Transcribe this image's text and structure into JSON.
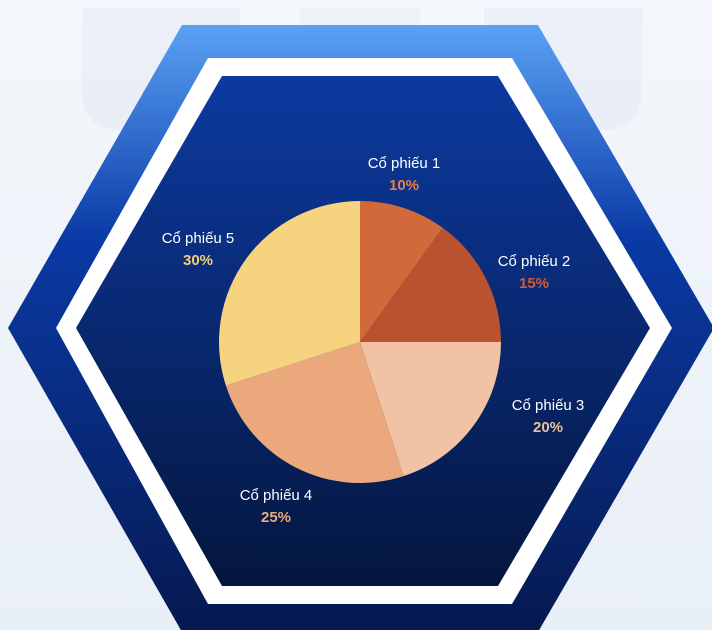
{
  "chart_data": {
    "type": "pie",
    "start_angle_deg": 0,
    "direction": "clockwise",
    "slices": [
      {
        "label": "Cổ phiếu 1",
        "value_label": "10%",
        "value": 10,
        "color": "#d2693a",
        "label_color": "#ffffff",
        "value_color": "#e57d45"
      },
      {
        "label": "Cổ phiếu 2",
        "value_label": "15%",
        "value": 15,
        "color": "#b9522f",
        "label_color": "#ffffff",
        "value_color": "#d35a33"
      },
      {
        "label": "Cổ phiếu 3",
        "value_label": "20%",
        "value": 20,
        "color": "#f1c3a4",
        "label_color": "#ffffff",
        "value_color": "#efbd9c"
      },
      {
        "label": "Cổ phiếu 4",
        "value_label": "25%",
        "value": 25,
        "color": "#eba87d",
        "label_color": "#ffffff",
        "value_color": "#eba87d"
      },
      {
        "label": "Cổ phiếu 5",
        "value_label": "30%",
        "value": 30,
        "color": "#f6d37f",
        "label_color": "#ffffff",
        "value_color": "#f3cf73"
      }
    ]
  },
  "colors": {
    "hex_outer_top": "#5aa2f5",
    "hex_outer_mid": "#0a3aa6",
    "hex_outer_bottom": "#06194f",
    "hex_border": "#ffffff",
    "hex_inner_top": "#0d3aa0",
    "hex_inner_bottom": "#04163f"
  }
}
